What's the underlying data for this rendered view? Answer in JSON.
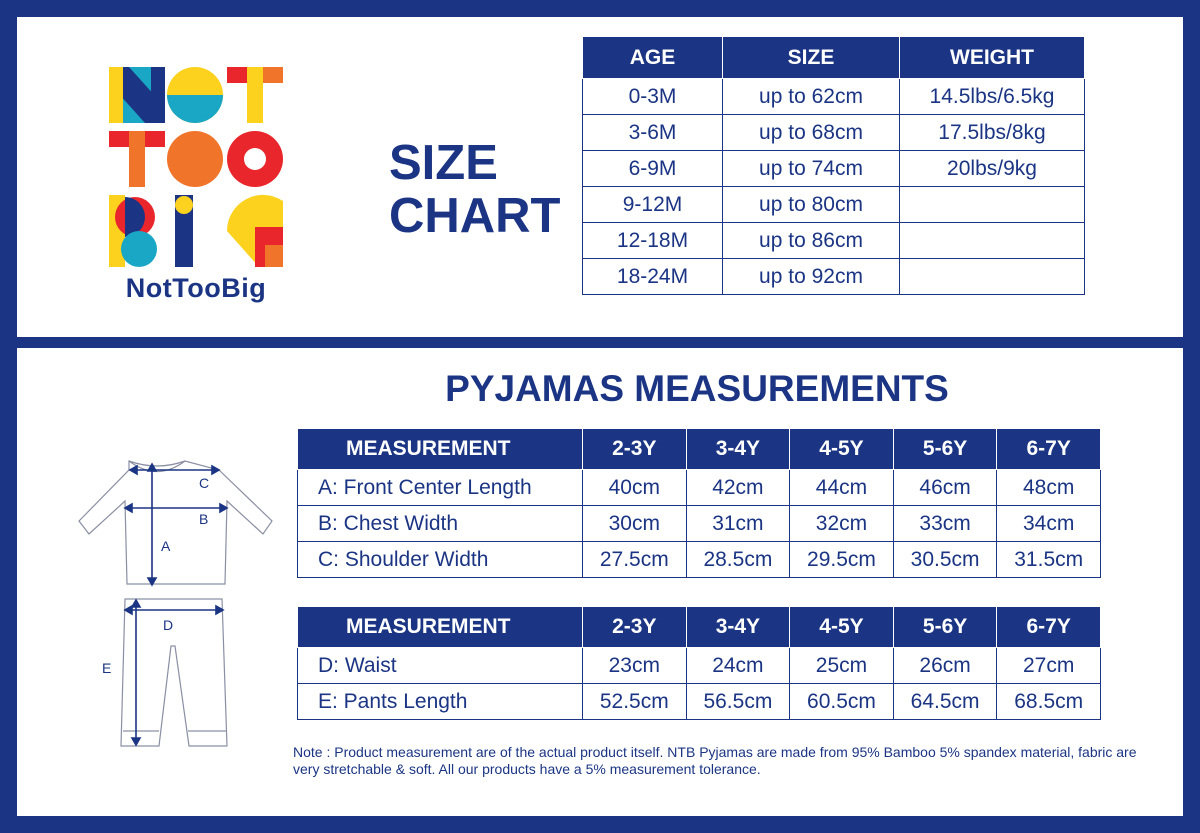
{
  "brand": {
    "logo_letters": "NOT TOO BIG",
    "name": "NotTooBig"
  },
  "size_chart": {
    "title_line1": "SIZE",
    "title_line2": "CHART",
    "headers": [
      "AGE",
      "SIZE",
      "WEIGHT"
    ],
    "rows": [
      [
        "0-3M",
        "up to 62cm",
        "14.5lbs/6.5kg"
      ],
      [
        "3-6M",
        "up to 68cm",
        "17.5lbs/8kg"
      ],
      [
        "6-9M",
        "up to 74cm",
        "20lbs/9kg"
      ],
      [
        "9-12M",
        "up to 80cm",
        ""
      ],
      [
        "12-18M",
        "up to 86cm",
        ""
      ],
      [
        "18-24M",
        "up to 92cm",
        ""
      ]
    ]
  },
  "pyjamas": {
    "title": "PYJAMAS MEASUREMENTS",
    "table1": {
      "headers": [
        "MEASUREMENT",
        "2-3Y",
        "3-4Y",
        "4-5Y",
        "5-6Y",
        "6-7Y"
      ],
      "rows": [
        [
          "A: Front Center Length",
          "40cm",
          "42cm",
          "44cm",
          "46cm",
          "48cm"
        ],
        [
          "B: Chest Width",
          "30cm",
          "31cm",
          "32cm",
          "33cm",
          "34cm"
        ],
        [
          "C: Shoulder Width",
          "27.5cm",
          "28.5cm",
          "29.5cm",
          "30.5cm",
          "31.5cm"
        ]
      ]
    },
    "table2": {
      "headers": [
        "MEASUREMENT",
        "2-3Y",
        "3-4Y",
        "4-5Y",
        "5-6Y",
        "6-7Y"
      ],
      "rows": [
        [
          "D: Waist",
          "23cm",
          "24cm",
          "25cm",
          "26cm",
          "27cm"
        ],
        [
          "E: Pants Length",
          "52.5cm",
          "56.5cm",
          "60.5cm",
          "64.5cm",
          "68.5cm"
        ]
      ]
    },
    "diagram_labels": {
      "a": "A",
      "b": "B",
      "c": "C",
      "d": "D",
      "e": "E"
    },
    "note": "Note : Product measurement are of the actual product itself. NTB Pyjamas are made from 95% Bamboo 5% spandex material, fabric are very stretchable & soft. All our products have a 5% measurement tolerance."
  },
  "colors": {
    "navy": "#1b3584",
    "red": "#e8262b",
    "yellow": "#fcd21f",
    "teal": "#1aa7c5",
    "orange": "#f0752a"
  }
}
